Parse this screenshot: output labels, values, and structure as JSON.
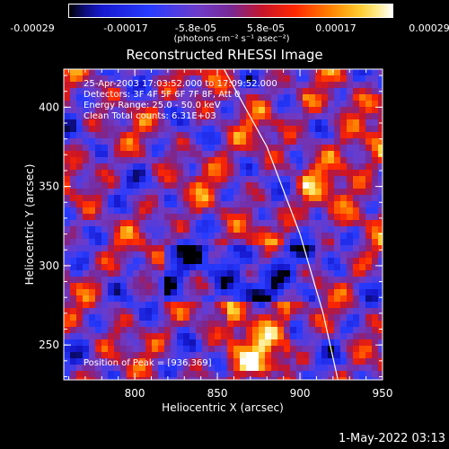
{
  "colorbar": {
    "tick_labels": [
      "-0.00029",
      "-0.00017",
      "-5.8e-05",
      "5.8e-05",
      "0.00017",
      "0.00029"
    ],
    "unit_label": "(photons cm⁻² s⁻¹ asec⁻²)"
  },
  "footer": {
    "date": "1-May-2022 03:13"
  },
  "chart_data": {
    "type": "heatmap",
    "title": "Reconstructed RHESSI Image",
    "xlabel": "Heliocentric X (arcsec)",
    "ylabel": "Heliocentric Y (arcsec)",
    "xlim": [
      757,
      950
    ],
    "ylim": [
      228,
      424
    ],
    "x_ticks": [
      800,
      850,
      900,
      950
    ],
    "y_ticks": [
      250,
      300,
      350,
      400
    ],
    "color_range": [
      -0.00029,
      0.00029
    ],
    "annotations": {
      "time": "25-Apr-2003 17:03:52.000 to 17:09:52.000",
      "detectors": "Detectors: 3F 4F 5F 6F 7F 8F, Att 0",
      "energy": "Energy Range: 25.0 - 50.0 keV",
      "clean": "Clean    Total counts: 6.31E+03",
      "peak": "Position of Peak = [936,369]"
    },
    "limb_curve": {
      "points": [
        [
          854,
          424
        ],
        [
          880,
          375
        ],
        [
          900,
          320
        ],
        [
          914,
          270
        ],
        [
          923,
          228
        ]
      ]
    }
  }
}
